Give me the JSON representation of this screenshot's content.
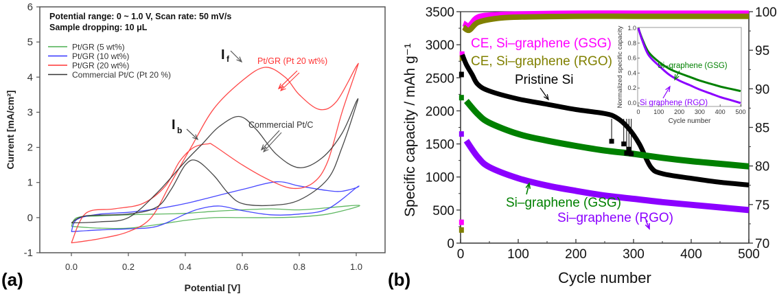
{
  "chart_data": [
    {
      "id": "a",
      "panel_label": "(a)",
      "type": "line",
      "title": "",
      "xlabel": "Potential [V]",
      "ylabel": "Current [mA/cm²]",
      "xlim": [
        -0.1,
        1.1
      ],
      "ylim": [
        -1,
        6
      ],
      "xticks": [
        "0.0",
        "0.2",
        "0.4",
        "0.6",
        "0.8",
        "1.0"
      ],
      "xtick_values": [
        0.0,
        0.2,
        0.4,
        0.6,
        0.8,
        1.0
      ],
      "yticks": [
        "-1",
        "0",
        "1",
        "2",
        "3",
        "4",
        "5",
        "6"
      ],
      "ytick_values": [
        -1,
        0,
        1,
        2,
        3,
        4,
        5,
        6
      ],
      "grid": false,
      "legend_position": "top-left",
      "header_lines": [
        "Potential range: 0  ~ 1.0 V, Scan rate: 50 mV/s",
        "Sample dropping: 10 μL"
      ],
      "series": [
        {
          "name": "Pt/GR (5 wt%)",
          "color": "#4caf50",
          "forward": [
            [
              0.0,
              -0.25
            ],
            [
              0.1,
              -0.3
            ],
            [
              0.2,
              -0.3
            ],
            [
              0.3,
              -0.2
            ],
            [
              0.4,
              -0.08
            ],
            [
              0.5,
              0.0
            ],
            [
              0.6,
              0.0
            ],
            [
              0.7,
              0.0
            ],
            [
              0.8,
              0.02
            ],
            [
              0.9,
              0.1
            ],
            [
              1.0,
              0.3
            ]
          ],
          "backward": [
            [
              1.0,
              0.35
            ],
            [
              0.9,
              0.28
            ],
            [
              0.8,
              0.22
            ],
            [
              0.7,
              0.25
            ],
            [
              0.6,
              0.22
            ],
            [
              0.5,
              0.18
            ],
            [
              0.4,
              0.12
            ],
            [
              0.3,
              0.1
            ],
            [
              0.2,
              0.08
            ],
            [
              0.1,
              0.05
            ],
            [
              0.02,
              0.0
            ],
            [
              0.0,
              -0.25
            ]
          ]
        },
        {
          "name": "Pt/GR (10 wt%)",
          "color": "#3333ff",
          "forward": [
            [
              0.0,
              -0.4
            ],
            [
              0.1,
              -0.35
            ],
            [
              0.2,
              -0.32
            ],
            [
              0.3,
              -0.25
            ],
            [
              0.4,
              0.1
            ],
            [
              0.45,
              0.25
            ],
            [
              0.52,
              0.33
            ],
            [
              0.6,
              0.2
            ],
            [
              0.7,
              0.08
            ],
            [
              0.8,
              0.1
            ],
            [
              0.9,
              0.25
            ],
            [
              1.0,
              0.85
            ]
          ],
          "backward": [
            [
              1.0,
              0.85
            ],
            [
              0.95,
              0.75
            ],
            [
              0.9,
              0.77
            ],
            [
              0.8,
              0.9
            ],
            [
              0.72,
              1.02
            ],
            [
              0.6,
              0.8
            ],
            [
              0.5,
              0.6
            ],
            [
              0.4,
              0.4
            ],
            [
              0.3,
              0.25
            ],
            [
              0.2,
              0.15
            ],
            [
              0.1,
              0.1
            ],
            [
              0.02,
              -0.05
            ],
            [
              0.0,
              -0.4
            ]
          ]
        },
        {
          "name": "Pt/GR (20 wt%)",
          "color": "#ff3333",
          "forward": [
            [
              0.0,
              -0.72
            ],
            [
              0.1,
              -0.6
            ],
            [
              0.2,
              -0.4
            ],
            [
              0.28,
              0.0
            ],
            [
              0.35,
              1.0
            ],
            [
              0.42,
              2.0
            ],
            [
              0.5,
              3.1
            ],
            [
              0.6,
              3.9
            ],
            [
              0.68,
              4.28
            ],
            [
              0.75,
              4.0
            ],
            [
              0.8,
              3.5
            ],
            [
              0.87,
              3.08
            ],
            [
              0.93,
              3.3
            ],
            [
              1.0,
              4.3
            ]
          ],
          "backward": [
            [
              1.0,
              4.2
            ],
            [
              0.95,
              3.0
            ],
            [
              0.9,
              1.6
            ],
            [
              0.85,
              1.0
            ],
            [
              0.78,
              0.83
            ],
            [
              0.7,
              1.05
            ],
            [
              0.6,
              1.5
            ],
            [
              0.5,
              2.05
            ],
            [
              0.48,
              2.1
            ],
            [
              0.43,
              2.0
            ],
            [
              0.38,
              1.6
            ],
            [
              0.33,
              0.9
            ],
            [
              0.25,
              0.4
            ],
            [
              0.15,
              0.25
            ],
            [
              0.05,
              0.12
            ],
            [
              0.0,
              -0.72
            ]
          ]
        },
        {
          "name": "Commercial Pt/C (Pt 20 %)",
          "color": "#333333",
          "forward": [
            [
              0.0,
              -0.15
            ],
            [
              0.1,
              -0.12
            ],
            [
              0.2,
              0.0
            ],
            [
              0.3,
              0.7
            ],
            [
              0.4,
              1.6
            ],
            [
              0.46,
              2.1
            ],
            [
              0.52,
              2.6
            ],
            [
              0.59,
              2.88
            ],
            [
              0.65,
              2.5
            ],
            [
              0.72,
              1.8
            ],
            [
              0.8,
              1.42
            ],
            [
              0.88,
              1.7
            ],
            [
              0.95,
              2.4
            ],
            [
              1.0,
              3.3
            ]
          ],
          "backward": [
            [
              1.0,
              3.2
            ],
            [
              0.95,
              2.0
            ],
            [
              0.9,
              1.1
            ],
            [
              0.8,
              0.5
            ],
            [
              0.7,
              0.35
            ],
            [
              0.6,
              0.4
            ],
            [
              0.55,
              0.7
            ],
            [
              0.5,
              1.2
            ],
            [
              0.44,
              1.62
            ],
            [
              0.4,
              1.5
            ],
            [
              0.35,
              0.8
            ],
            [
              0.3,
              0.3
            ],
            [
              0.2,
              0.1
            ],
            [
              0.05,
              0.05
            ],
            [
              0.0,
              -0.15
            ]
          ]
        }
      ],
      "annotations": [
        {
          "text": "I",
          "sub": "f",
          "x": 0.46,
          "y": 4.8
        },
        {
          "text": "I",
          "sub": "b",
          "x": 0.28,
          "y": 2.5
        },
        {
          "text": "Pt/GR (Pt 20 wt%)",
          "color": "#ff3333",
          "x": 0.75,
          "y": 4.15
        },
        {
          "text": "Commercial Pt/C",
          "color": "#333333",
          "x": 0.75,
          "y": 2.0
        }
      ]
    },
    {
      "id": "b",
      "panel_label": "(b)",
      "type": "scatter",
      "title": "",
      "xlabel": "Cycle number",
      "ylabel": "Specific capacity / mAh g⁻¹",
      "ylabel_right": "",
      "xlim": [
        0,
        500
      ],
      "ylim": [
        0,
        3500
      ],
      "ylim_right": [
        70,
        100
      ],
      "xticks": [
        "0",
        "100",
        "200",
        "300",
        "400",
        "500"
      ],
      "xtick_values": [
        0,
        100,
        200,
        300,
        400,
        500
      ],
      "yticks": [
        "0",
        "500",
        "1000",
        "1500",
        "2000",
        "2500",
        "3000",
        "3500"
      ],
      "ytick_values": [
        0,
        500,
        1000,
        1500,
        2000,
        2500,
        3000,
        3500
      ],
      "yticks_right": [
        "70",
        "75",
        "80",
        "85",
        "90",
        "95",
        "100"
      ],
      "ytick_values_right": [
        70,
        75,
        80,
        85,
        90,
        95,
        100
      ],
      "grid": false,
      "series": [
        {
          "name": "CE, Si–graphene (GSG)",
          "axis": "right",
          "color": "#ff00ff",
          "points": [
            [
              1,
              72.7
            ],
            [
              2,
              94.5
            ],
            [
              5,
              98.5
            ],
            [
              15,
              98.2
            ],
            [
              30,
              99.3
            ],
            [
              60,
              99.6
            ],
            [
              100,
              99.7
            ],
            [
              200,
              99.8
            ],
            [
              300,
              99.8
            ],
            [
              400,
              99.8
            ],
            [
              500,
              99.8
            ]
          ]
        },
        {
          "name": "CE, Si–graphene (RGO)",
          "axis": "right",
          "color": "#808000",
          "points": [
            [
              1,
              71.7
            ],
            [
              2,
              94.0
            ],
            [
              5,
              98.0
            ],
            [
              15,
              97.6
            ],
            [
              30,
              98.6
            ],
            [
              60,
              99.1
            ],
            [
              100,
              99.3
            ],
            [
              200,
              99.4
            ],
            [
              300,
              99.4
            ],
            [
              400,
              99.4
            ],
            [
              500,
              99.4
            ]
          ]
        },
        {
          "name": "Pristine Si",
          "axis": "left",
          "color": "#000000",
          "points": [
            [
              1,
              2550
            ],
            [
              3,
              2850
            ],
            [
              10,
              2700
            ],
            [
              20,
              2550
            ],
            [
              30,
              2400
            ],
            [
              50,
              2300
            ],
            [
              100,
              2180
            ],
            [
              150,
              2100
            ],
            [
              200,
              2020
            ],
            [
              250,
              1960
            ],
            [
              270,
              1900
            ],
            [
              290,
              1750
            ],
            [
              310,
              1500
            ],
            [
              330,
              1150
            ],
            [
              350,
              1050
            ],
            [
              400,
              980
            ],
            [
              450,
              920
            ],
            [
              500,
              880
            ]
          ]
        },
        {
          "name": "Si–graphene (GSG)",
          "axis": "left",
          "color": "#008000",
          "points": [
            [
              1,
              2200
            ],
            [
              10,
              2150
            ],
            [
              30,
              1950
            ],
            [
              50,
              1820
            ],
            [
              100,
              1650
            ],
            [
              150,
              1550
            ],
            [
              200,
              1470
            ],
            [
              250,
              1400
            ],
            [
              300,
              1350
            ],
            [
              350,
              1290
            ],
            [
              400,
              1240
            ],
            [
              450,
              1200
            ],
            [
              500,
              1160
            ]
          ]
        },
        {
          "name": "Si–graphene (RGO)",
          "axis": "left",
          "color": "#8b00ff",
          "points": [
            [
              1,
              1650
            ],
            [
              10,
              1550
            ],
            [
              30,
              1300
            ],
            [
              50,
              1150
            ],
            [
              100,
              980
            ],
            [
              150,
              870
            ],
            [
              200,
              790
            ],
            [
              250,
              720
            ],
            [
              300,
              670
            ],
            [
              350,
              620
            ],
            [
              400,
              580
            ],
            [
              450,
              540
            ],
            [
              500,
              500
            ]
          ]
        }
      ],
      "annotations": [
        {
          "text": "CE, Si–graphene (GSG)",
          "color": "#ff00ff"
        },
        {
          "text": "CE, Si–graphene (RGO)",
          "color": "#808000"
        },
        {
          "text": "Pristine Si",
          "color": "#000000"
        },
        {
          "text": "Si–graphene (GSG)",
          "color": "#008000"
        },
        {
          "text": "Si–graphene (RGO)",
          "color": "#8b00ff"
        }
      ],
      "inset": {
        "type": "line",
        "xlabel": "Cycle number",
        "ylabel": "Normalized specific capacity",
        "xlim": [
          0,
          500
        ],
        "ylim": [
          -0.05,
          1.05
        ],
        "xticks": [
          "0",
          "100",
          "200",
          "300",
          "400",
          "500"
        ],
        "xtick_values": [
          0,
          100,
          200,
          300,
          400,
          500
        ],
        "yticks": [
          "0.0",
          "0.2",
          "0.4",
          "0.6",
          "0.8",
          "1.0"
        ],
        "ytick_values": [
          0.0,
          0.2,
          0.4,
          0.6,
          0.8,
          1.0
        ],
        "series": [
          {
            "name": "Si–graphene (GSG)",
            "color": "#008000",
            "points": [
              [
                0,
                1.0
              ],
              [
                20,
                0.85
              ],
              [
                50,
                0.68
              ],
              [
                100,
                0.55
              ],
              [
                150,
                0.46
              ],
              [
                200,
                0.4
              ],
              [
                250,
                0.35
              ],
              [
                300,
                0.3
              ],
              [
                350,
                0.26
              ],
              [
                400,
                0.22
              ],
              [
                450,
                0.19
              ],
              [
                500,
                0.16
              ]
            ]
          },
          {
            "name": "Si–graphene (RGO)",
            "color": "#8b00ff",
            "points": [
              [
                0,
                1.0
              ],
              [
                20,
                0.83
              ],
              [
                50,
                0.64
              ],
              [
                100,
                0.5
              ],
              [
                150,
                0.38
              ],
              [
                200,
                0.3
              ],
              [
                250,
                0.24
              ],
              [
                300,
                0.18
              ],
              [
                350,
                0.13
              ],
              [
                400,
                0.08
              ],
              [
                450,
                0.04
              ],
              [
                500,
                0.0
              ]
            ]
          }
        ],
        "annotations": [
          {
            "text": "Si–graphene (GSG)",
            "color": "#008000"
          },
          {
            "text": "Si  graphene (RGO)",
            "color": "#8b00ff"
          }
        ]
      }
    }
  ]
}
